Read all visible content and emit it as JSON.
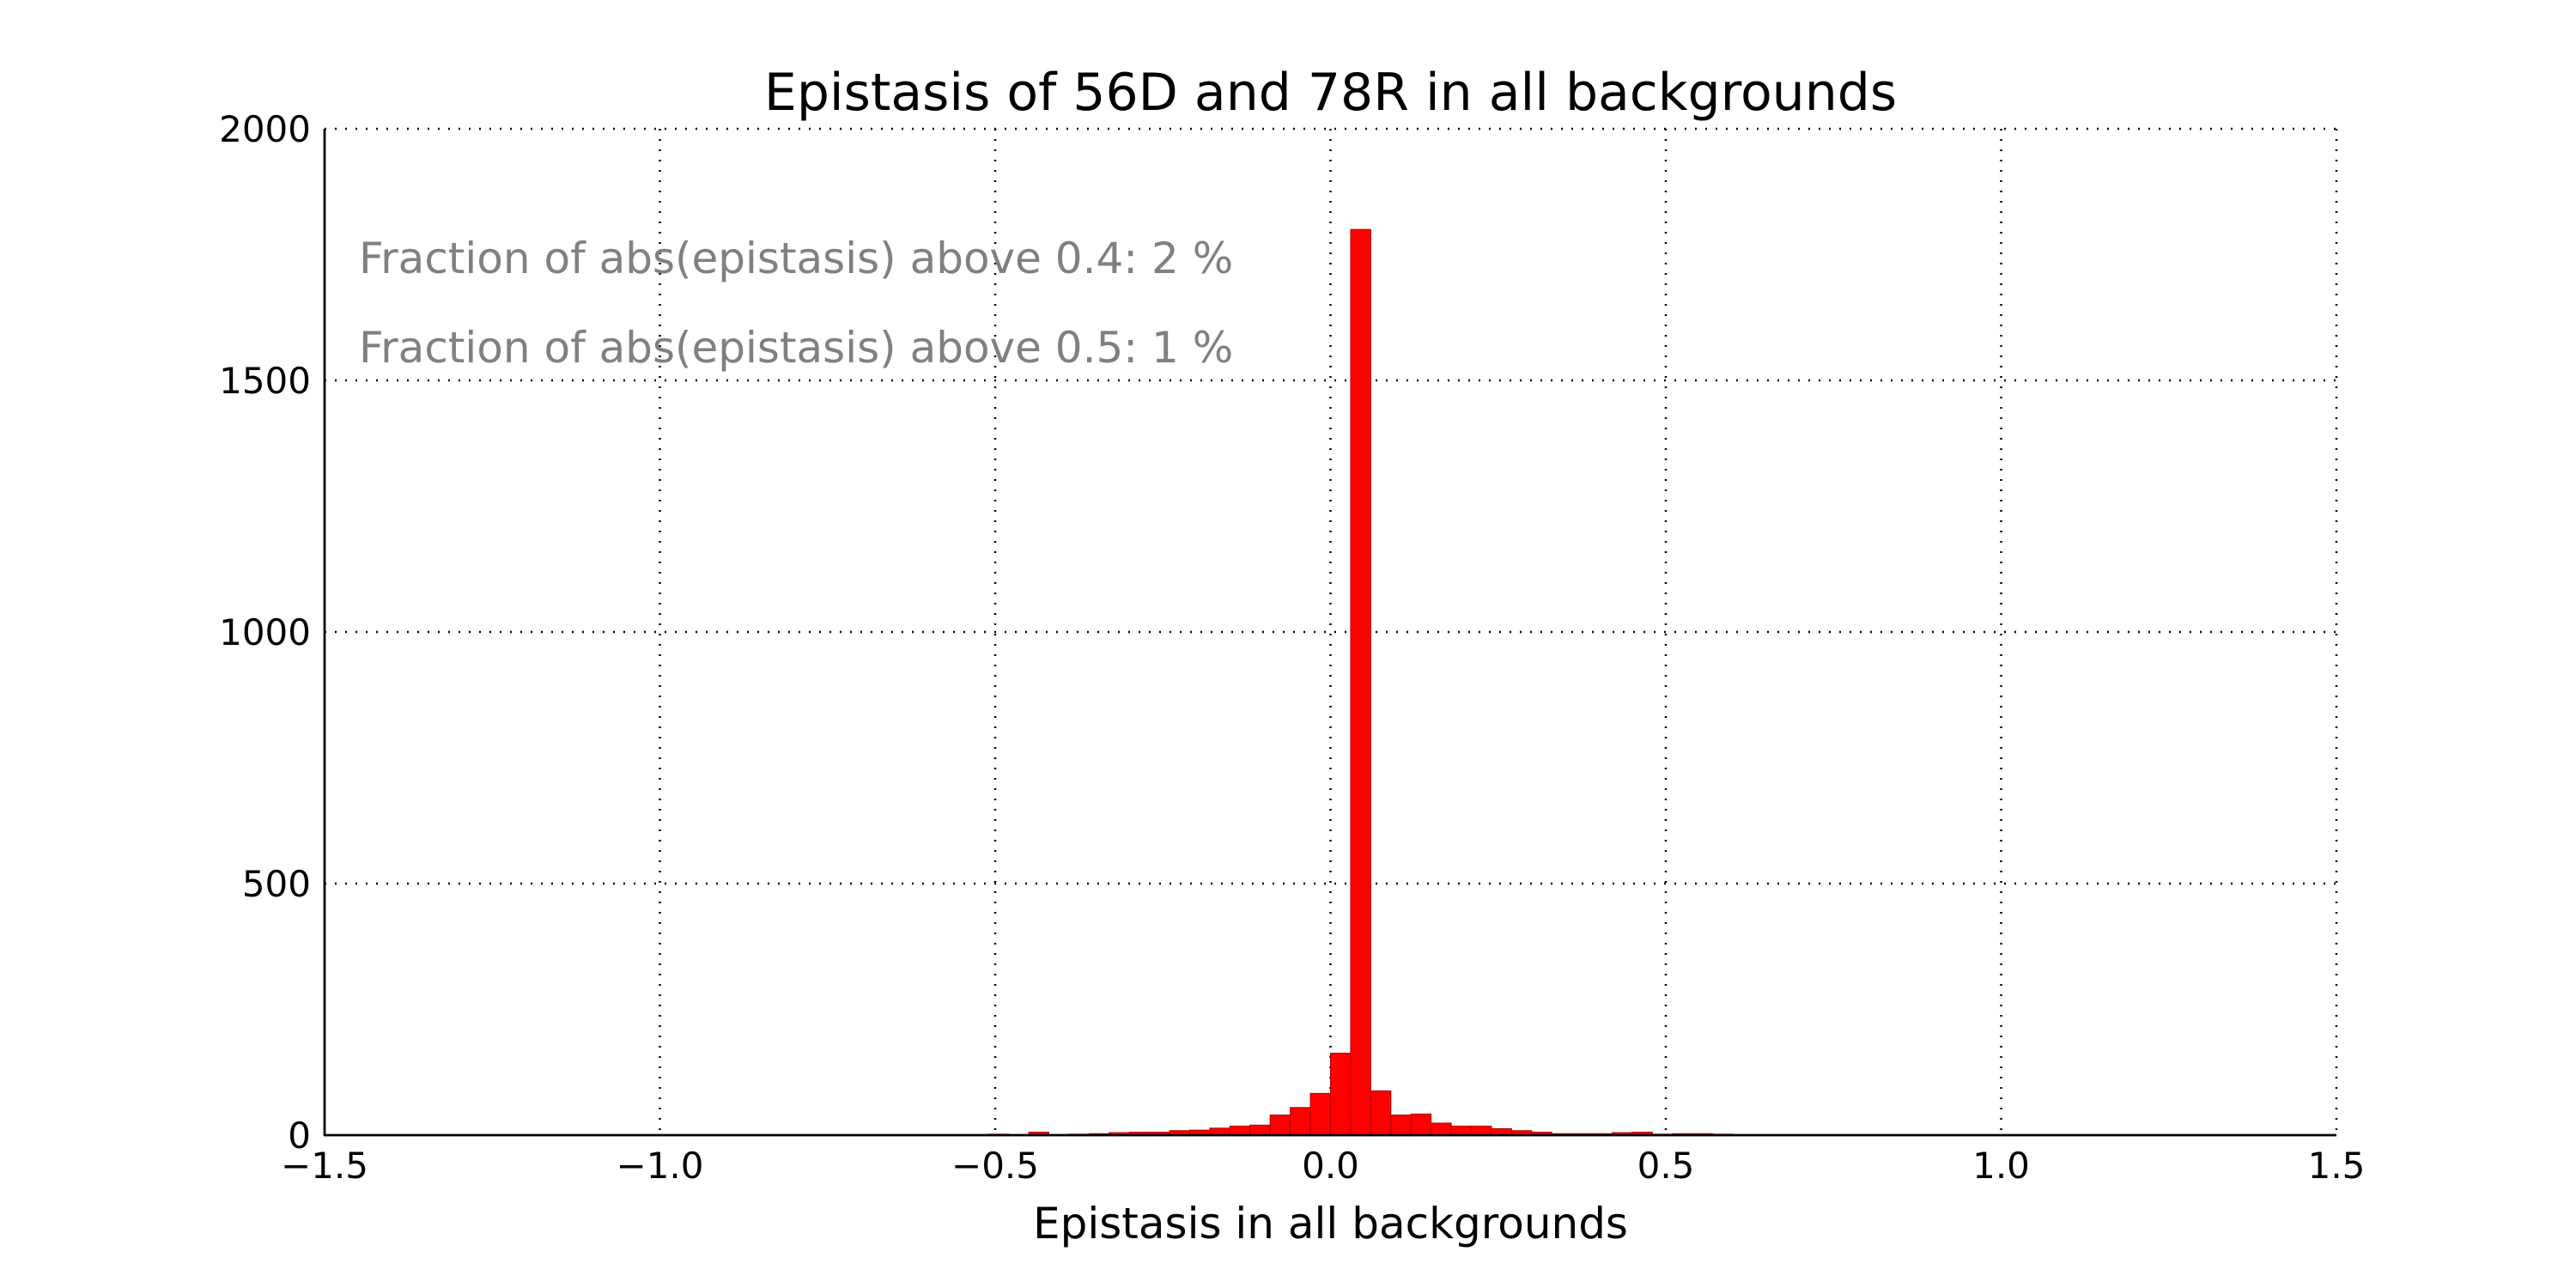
{
  "chart_data": {
    "type": "bar",
    "title": "Epistasis of 56D and 78R in all backgrounds",
    "xlabel": "Epistasis in all backgrounds",
    "ylabel": "",
    "xlim": [
      -1.5,
      1.5
    ],
    "ylim": [
      0,
      2000
    ],
    "xticks": [
      -1.5,
      -1.0,
      -0.5,
      0.0,
      0.5,
      1.0,
      1.5
    ],
    "xtick_labels": [
      "−1.5",
      "−1.0",
      "−0.5",
      "0.0",
      "0.5",
      "1.0",
      "1.5"
    ],
    "yticks": [
      0,
      500,
      1000,
      1500,
      2000
    ],
    "ytick_labels": [
      "0",
      "500",
      "1000",
      "1500",
      "2000"
    ],
    "grid": true,
    "bar_color": "#ff0000",
    "annotations": [
      "Fraction of abs(epistasis) above 0.4: 2 %",
      "Fraction of abs(epistasis) above 0.5: 1 %"
    ],
    "bin_width": 0.03,
    "bins": [
      {
        "x0": -0.51,
        "value": 2
      },
      {
        "x0": -0.45,
        "value": 6
      },
      {
        "x0": -0.39,
        "value": 2
      },
      {
        "x0": -0.36,
        "value": 3
      },
      {
        "x0": -0.33,
        "value": 5
      },
      {
        "x0": -0.3,
        "value": 6
      },
      {
        "x0": -0.27,
        "value": 6
      },
      {
        "x0": -0.24,
        "value": 9
      },
      {
        "x0": -0.21,
        "value": 10
      },
      {
        "x0": -0.18,
        "value": 14
      },
      {
        "x0": -0.15,
        "value": 18
      },
      {
        "x0": -0.12,
        "value": 20
      },
      {
        "x0": -0.09,
        "value": 40
      },
      {
        "x0": -0.06,
        "value": 55
      },
      {
        "x0": -0.03,
        "value": 83
      },
      {
        "x0": 0.0,
        "value": 163
      },
      {
        "x0": 0.03,
        "value": 1800
      },
      {
        "x0": 0.06,
        "value": 88
      },
      {
        "x0": 0.09,
        "value": 40
      },
      {
        "x0": 0.12,
        "value": 42
      },
      {
        "x0": 0.15,
        "value": 24
      },
      {
        "x0": 0.18,
        "value": 18
      },
      {
        "x0": 0.21,
        "value": 18
      },
      {
        "x0": 0.24,
        "value": 13
      },
      {
        "x0": 0.27,
        "value": 9
      },
      {
        "x0": 0.3,
        "value": 6
      },
      {
        "x0": 0.33,
        "value": 3
      },
      {
        "x0": 0.36,
        "value": 3
      },
      {
        "x0": 0.39,
        "value": 3
      },
      {
        "x0": 0.42,
        "value": 5
      },
      {
        "x0": 0.45,
        "value": 6
      },
      {
        "x0": 0.48,
        "value": 2
      },
      {
        "x0": 0.51,
        "value": 3
      },
      {
        "x0": 0.54,
        "value": 3
      },
      {
        "x0": 0.57,
        "value": 2
      }
    ]
  }
}
